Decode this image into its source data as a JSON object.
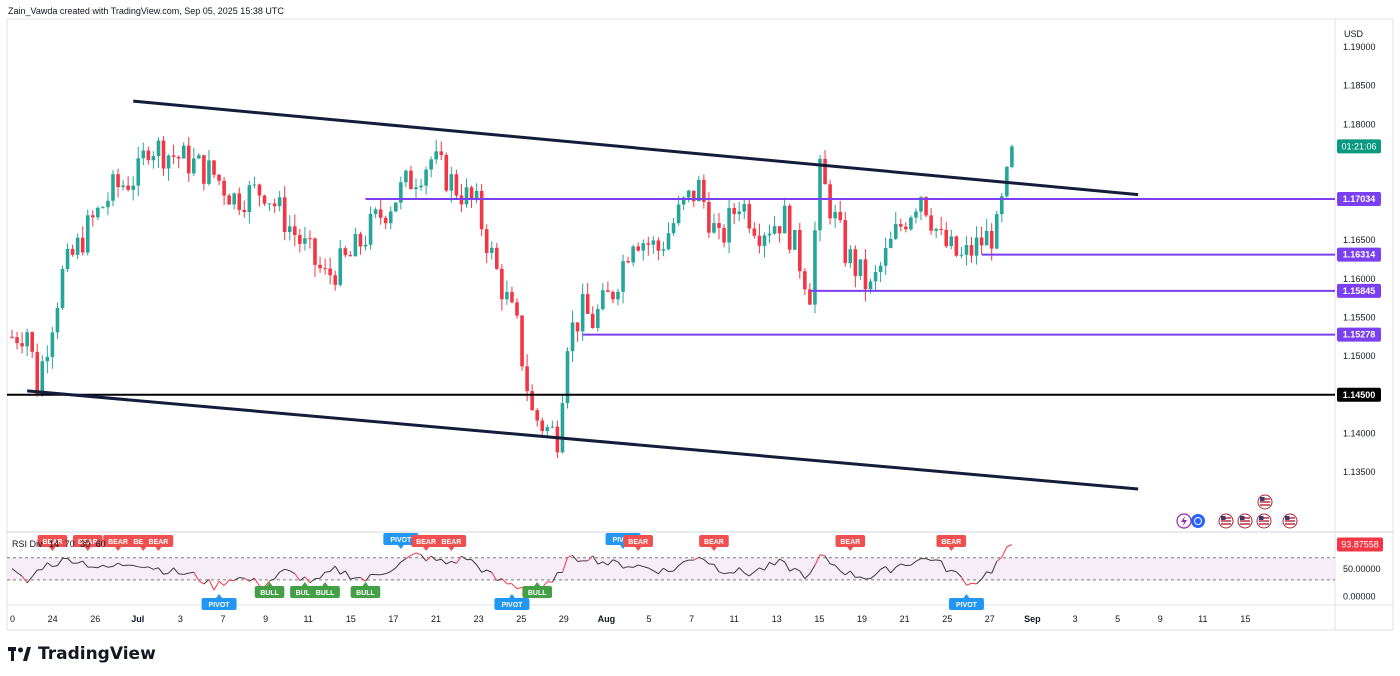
{
  "header": {
    "attribution": "Zain_Vawda created with TradingView.com, Sep 05, 2025 15:38 UTC"
  },
  "footer": {
    "brand": "TradingView"
  },
  "colors": {
    "bull": "#26a69a",
    "bear": "#f23645",
    "channel": "#131c3b",
    "level": "#7b3ff2",
    "support": "#000000",
    "rsi_line": "#3a3a3a",
    "rsi_band": "#f3e5f5",
    "last_price": "#089981",
    "rsi_value_tag": "#f23645",
    "bull_marker": "#43a047",
    "bear_marker": "#f0504f",
    "pivot_marker": "#2196f3"
  },
  "icons": {
    "logo": "tradingview-logo-icon",
    "event_icons": [
      "lightning-icon",
      "earth-icon",
      "us-flag-icon",
      "us-flag-icon",
      "us-flag-icon",
      "us-flag-icon",
      "us-flag-icon"
    ]
  },
  "chart_data": {
    "type": "candlestick",
    "title": "",
    "currency": "USD",
    "price_axis": {
      "ylim": [
        1.1275,
        1.1935
      ],
      "ticks": [
        "1.19000",
        "1.18500",
        "1.18000",
        "1.16500",
        "1.16000",
        "1.15500",
        "1.15000",
        "1.14000",
        "1.13500"
      ],
      "tick_values": [
        1.19,
        1.185,
        1.18,
        1.165,
        1.16,
        1.155,
        1.15,
        1.14,
        1.135
      ]
    },
    "time_axis": {
      "labels": [
        "0",
        "24",
        "26",
        "Jul",
        "3",
        "7",
        "9",
        "11",
        "15",
        "17",
        "21",
        "23",
        "25",
        "29",
        "Aug",
        "5",
        "7",
        "11",
        "13",
        "15",
        "19",
        "21",
        "25",
        "27",
        "Sep",
        "3",
        "5",
        "9",
        "11",
        "15"
      ],
      "bold": [
        "Jul",
        "Aug",
        "Sep"
      ]
    },
    "last_price_countdown": "01:21:06",
    "price_tags": [
      {
        "label": "1.17034",
        "value": 1.17034,
        "style": "level"
      },
      {
        "label": "1.16314",
        "value": 1.16314,
        "style": "level"
      },
      {
        "label": "1.15845",
        "value": 1.15845,
        "style": "level"
      },
      {
        "label": "1.15278",
        "value": 1.15278,
        "style": "level"
      },
      {
        "label": "1.14500",
        "value": 1.145,
        "style": "support"
      }
    ],
    "horizontal_levels": [
      {
        "name": "resistance-1.17034",
        "value": 1.17034,
        "from_bar": 70,
        "to_bar": 223,
        "style": "level"
      },
      {
        "name": "level-1.16314",
        "value": 1.16314,
        "from_bar": 192,
        "to_bar": 223,
        "style": "level"
      },
      {
        "name": "level-1.15845",
        "value": 1.15845,
        "from_bar": 158,
        "to_bar": 223,
        "style": "level"
      },
      {
        "name": "level-1.15278",
        "value": 1.15278,
        "from_bar": 113,
        "to_bar": 223,
        "style": "level"
      },
      {
        "name": "support-1.14500",
        "value": 1.145,
        "from_bar": 0,
        "to_bar": 223,
        "style": "support"
      }
    ],
    "channel_lines": [
      {
        "name": "channel-upper",
        "from": [
          24,
          1.183
        ],
        "to": [
          223,
          1.1709
        ]
      },
      {
        "name": "channel-lower",
        "from": [
          3,
          1.1455
        ],
        "to": [
          223,
          1.1328
        ]
      }
    ],
    "ohlc_anchors": [
      [
        0,
        1.1525
      ],
      [
        3,
        1.1535
      ],
      [
        5,
        1.1462
      ],
      [
        10,
        1.1605
      ],
      [
        15,
        1.1665
      ],
      [
        20,
        1.1715
      ],
      [
        25,
        1.1735
      ],
      [
        27,
        1.1775
      ],
      [
        30,
        1.1765
      ],
      [
        35,
        1.1752
      ],
      [
        40,
        1.1735
      ],
      [
        44,
        1.1705
      ],
      [
        50,
        1.1716
      ],
      [
        55,
        1.1668
      ],
      [
        62,
        1.1602
      ],
      [
        67,
        1.1628
      ],
      [
        72,
        1.1675
      ],
      [
        78,
        1.1722
      ],
      [
        83,
        1.1755
      ],
      [
        88,
        1.1718
      ],
      [
        92,
        1.1693
      ],
      [
        96,
        1.1608
      ],
      [
        100,
        1.1535
      ],
      [
        103,
        1.1425
      ],
      [
        106,
        1.1405
      ],
      [
        108,
        1.1398
      ],
      [
        110,
        1.1525
      ],
      [
        113,
        1.1558
      ],
      [
        115,
        1.1545
      ],
      [
        119,
        1.1585
      ],
      [
        123,
        1.1658
      ],
      [
        128,
        1.1638
      ],
      [
        133,
        1.1695
      ],
      [
        136,
        1.1718
      ],
      [
        140,
        1.1645
      ],
      [
        144,
        1.1702
      ],
      [
        148,
        1.1665
      ],
      [
        153,
        1.1678
      ],
      [
        158,
        1.1585
      ],
      [
        160,
        1.1735
      ],
      [
        165,
        1.1635
      ],
      [
        170,
        1.1585
      ],
      [
        175,
        1.1658
      ],
      [
        180,
        1.1713
      ],
      [
        184,
        1.1648
      ],
      [
        188,
        1.1625
      ],
      [
        192,
        1.1648
      ],
      [
        195,
        1.1662
      ],
      [
        198,
        1.1758
      ]
    ],
    "rsi": {
      "label": "RSI Div",
      "params": [
        "14",
        "70",
        "30",
        "60"
      ],
      "value_label": "93.87558",
      "value": 93.87558,
      "ylim": [
        -12,
        113
      ],
      "ticks": [
        "50.00000",
        "0.00000"
      ],
      "tick_values": [
        50,
        0
      ],
      "band": [
        30,
        70
      ],
      "anchors": [
        [
          0,
          45
        ],
        [
          3,
          25
        ],
        [
          6,
          55
        ],
        [
          12,
          68
        ],
        [
          18,
          50
        ],
        [
          24,
          62
        ],
        [
          30,
          48
        ],
        [
          36,
          38
        ],
        [
          40,
          18
        ],
        [
          44,
          35
        ],
        [
          50,
          22
        ],
        [
          54,
          45
        ],
        [
          60,
          25
        ],
        [
          64,
          48
        ],
        [
          70,
          30
        ],
        [
          76,
          55
        ],
        [
          80,
          75
        ],
        [
          86,
          60
        ],
        [
          90,
          70
        ],
        [
          96,
          30
        ],
        [
          100,
          18
        ],
        [
          104,
          14
        ],
        [
          107,
          22
        ],
        [
          110,
          65
        ],
        [
          114,
          72
        ],
        [
          118,
          60
        ],
        [
          124,
          55
        ],
        [
          130,
          45
        ],
        [
          136,
          75
        ],
        [
          140,
          50
        ],
        [
          146,
          42
        ],
        [
          152,
          60
        ],
        [
          158,
          35
        ],
        [
          160,
          72
        ],
        [
          166,
          40
        ],
        [
          170,
          35
        ],
        [
          176,
          58
        ],
        [
          182,
          70
        ],
        [
          186,
          45
        ],
        [
          190,
          22
        ],
        [
          194,
          48
        ],
        [
          198,
          93.88
        ]
      ],
      "markers": [
        {
          "label": "BULL",
          "bar": 51,
          "kind": "bull"
        },
        {
          "label": "BULL",
          "bar": 58,
          "kind": "bull"
        },
        {
          "label": "BULL",
          "bar": 62,
          "kind": "bull"
        },
        {
          "label": "BULL",
          "bar": 70,
          "kind": "bull"
        },
        {
          "label": "BULL",
          "bar": 104,
          "kind": "bull"
        },
        {
          "label": "PIVOT",
          "bar": 41,
          "kind": "pivot-low"
        },
        {
          "label": "PIVOT",
          "bar": 77,
          "kind": "pivot-high"
        },
        {
          "label": "PIVOT",
          "bar": 99,
          "kind": "pivot-low"
        },
        {
          "label": "PIVOT",
          "bar": 121,
          "kind": "pivot-high"
        },
        {
          "label": "PIVOT",
          "bar": 189,
          "kind": "pivot-low"
        },
        {
          "label": "BEAR",
          "bar": 8,
          "kind": "bear"
        },
        {
          "label": "BEAR",
          "bar": 15,
          "kind": "bear"
        },
        {
          "label": "BEAR",
          "bar": 21,
          "kind": "bear"
        },
        {
          "label": "BEAR",
          "bar": 26,
          "kind": "bear"
        },
        {
          "label": "BEAR",
          "bar": 29,
          "kind": "bear"
        },
        {
          "label": "BEAR",
          "bar": 82,
          "kind": "bear"
        },
        {
          "label": "BEAR",
          "bar": 87,
          "kind": "bear"
        },
        {
          "label": "BEAR",
          "bar": 124,
          "kind": "bear"
        },
        {
          "label": "BEAR",
          "bar": 139,
          "kind": "bear"
        },
        {
          "label": "BEAR",
          "bar": 166,
          "kind": "bear"
        },
        {
          "label": "BEAR",
          "bar": 186,
          "kind": "bear"
        }
      ]
    }
  }
}
